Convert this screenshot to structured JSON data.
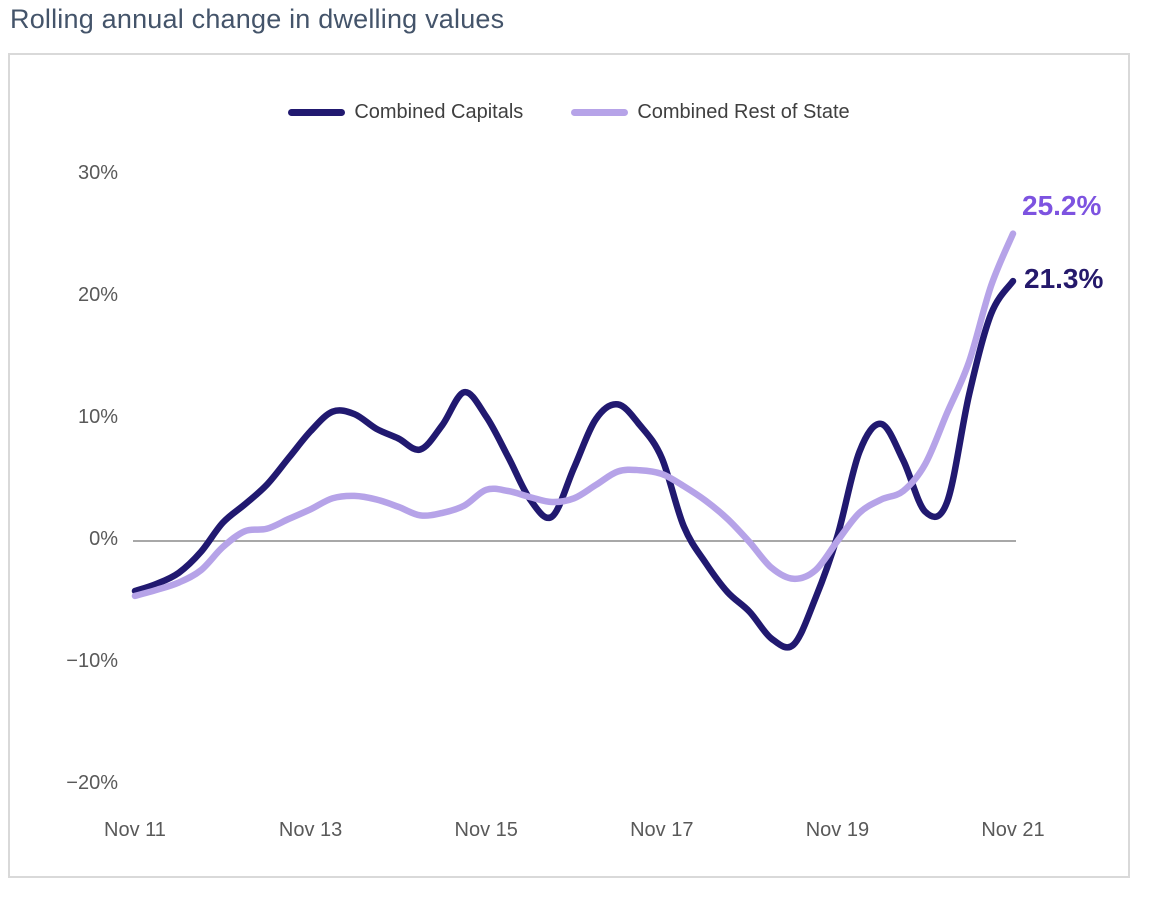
{
  "page": {
    "title": "Rolling annual change in dwelling values"
  },
  "colors": {
    "title_text": "#44546a",
    "axis_text": "#595959",
    "legend_text": "#3f3f3f",
    "zero_line": "#8c8c8c",
    "panel_border": "#d9d9d9",
    "capitals_line": "#211970",
    "rest_of_state_line": "#b6a3e8",
    "capitals_end_label": "#25196b",
    "rest_of_state_end_label": "#7d53e0"
  },
  "chart_data": {
    "type": "line",
    "title": "Rolling annual change in dwelling values",
    "xlabel": "",
    "ylabel": "",
    "ylim": [
      -20,
      30
    ],
    "y_ticks": [
      30,
      20,
      10,
      0,
      -10,
      -20
    ],
    "y_tick_labels": [
      "30%",
      "20%",
      "10%",
      "0%",
      "−10%",
      "−20%"
    ],
    "x_tick_indices": [
      0,
      8,
      16,
      24,
      32,
      40
    ],
    "x_tick_labels": [
      "Nov 11",
      "Nov 13",
      "Nov 15",
      "Nov 17",
      "Nov 19",
      "Nov 21"
    ],
    "grid": "zero-line-only",
    "legend_position": "top-center",
    "x": [
      "Nov 11",
      "Feb 12",
      "May 12",
      "Aug 12",
      "Nov 12",
      "Feb 13",
      "May 13",
      "Aug 13",
      "Nov 13",
      "Feb 14",
      "May 14",
      "Aug 14",
      "Nov 14",
      "Feb 15",
      "May 15",
      "Aug 15",
      "Nov 15",
      "Feb 16",
      "May 16",
      "Aug 16",
      "Nov 16",
      "Feb 17",
      "May 17",
      "Aug 17",
      "Nov 17",
      "Feb 18",
      "May 18",
      "Aug 18",
      "Nov 18",
      "Feb 19",
      "May 19",
      "Aug 19",
      "Nov 19",
      "Feb 20",
      "May 20",
      "Aug 20",
      "Nov 20",
      "Feb 21",
      "May 21",
      "Aug 21",
      "Nov 21"
    ],
    "series": [
      {
        "name": "Combined Capitals",
        "color": "#211970",
        "end_label": "21.3%",
        "end_label_color": "#25196b",
        "values": [
          -4.1,
          -3.5,
          -2.6,
          -0.9,
          1.5,
          3.0,
          4.6,
          6.8,
          9.0,
          10.6,
          10.4,
          9.2,
          8.4,
          7.5,
          9.5,
          12.2,
          10.2,
          6.9,
          3.4,
          2.0,
          6.0,
          10.0,
          11.2,
          9.5,
          6.8,
          1.2,
          -1.8,
          -4.2,
          -5.8,
          -8.0,
          -8.5,
          -4.7,
          0.4,
          7.3,
          9.6,
          6.6,
          2.4,
          3.2,
          12.0,
          18.6,
          21.3
        ]
      },
      {
        "name": "Combined Rest of State",
        "color": "#b6a3e8",
        "end_label": "25.2%",
        "end_label_color": "#7d53e0",
        "values": [
          -4.5,
          -4.0,
          -3.4,
          -2.4,
          -0.5,
          0.8,
          1.0,
          1.8,
          2.6,
          3.5,
          3.7,
          3.4,
          2.8,
          2.1,
          2.3,
          2.9,
          4.2,
          4.1,
          3.6,
          3.2,
          3.5,
          4.6,
          5.7,
          5.8,
          5.5,
          4.5,
          3.3,
          1.8,
          -0.1,
          -2.2,
          -3.1,
          -2.4,
          0.0,
          2.3,
          3.4,
          4.1,
          6.3,
          10.5,
          14.7,
          20.9,
          25.2
        ]
      }
    ]
  }
}
